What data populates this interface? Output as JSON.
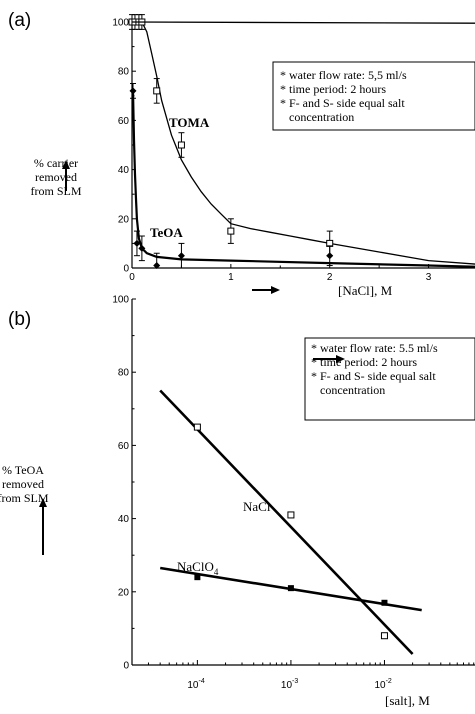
{
  "chart_data": [
    {
      "panel": "(a)",
      "type": "scatter",
      "ylabel": [
        "% carrier",
        "removed",
        "from SLM"
      ],
      "xlabel": "[NaCl], M",
      "xlim": [
        0,
        3.5
      ],
      "ylim": [
        0,
        100
      ],
      "x_ticks": [
        "0",
        "1",
        "2",
        "3"
      ],
      "y_ticks": [
        "0",
        "20",
        "40",
        "60",
        "80",
        "100"
      ],
      "legend": [
        "* water flow rate: 5,5 ml/s",
        "* time period:  2  hours",
        "* F- and S- side equal salt",
        "concentration"
      ],
      "series": [
        {
          "name": "TOMA",
          "marker": "open-square",
          "points": [
            {
              "x": 0.0,
              "y": 100,
              "err": 3
            },
            {
              "x": 0.03,
              "y": 100,
              "err": 3
            },
            {
              "x": 0.07,
              "y": 100,
              "err": 3
            },
            {
              "x": 0.1,
              "y": 100,
              "err": 3
            },
            {
              "x": 0.25,
              "y": 72,
              "err": 5
            },
            {
              "x": 0.5,
              "y": 50,
              "err": 5
            },
            {
              "x": 1.0,
              "y": 15,
              "err": 5
            },
            {
              "x": 2.0,
              "y": 10,
              "err": 5
            }
          ],
          "fit": [
            [
              0.1,
              100
            ],
            [
              0.15,
              96
            ],
            [
              0.2,
              87
            ],
            [
              0.25,
              78
            ],
            [
              0.3,
              68
            ],
            [
              0.4,
              54
            ],
            [
              0.5,
              44
            ],
            [
              0.6,
              37
            ],
            [
              0.7,
              31
            ],
            [
              0.8,
              26
            ],
            [
              0.9,
              22
            ],
            [
              1.0,
              18
            ],
            [
              1.2,
              16
            ],
            [
              1.4,
              14.5
            ],
            [
              1.6,
              13
            ],
            [
              1.8,
              11.5
            ],
            [
              2.0,
              10
            ],
            [
              2.5,
              6.5
            ],
            [
              3.0,
              3
            ],
            [
              3.5,
              1.5
            ]
          ]
        },
        {
          "name": "TeOA",
          "marker": "filled-diamond",
          "points": [
            {
              "x": 0.01,
              "y": 72,
              "err": 3
            },
            {
              "x": 0.05,
              "y": 10,
              "err": 5
            },
            {
              "x": 0.1,
              "y": 8,
              "err": 5
            },
            {
              "x": 0.25,
              "y": 1,
              "err": 5
            },
            {
              "x": 0.5,
              "y": 5,
              "err": 5
            },
            {
              "x": 2.0,
              "y": 5,
              "err": 4
            }
          ],
          "fit": [
            [
              0.01,
              72
            ],
            [
              0.015,
              62
            ],
            [
              0.02,
              52
            ],
            [
              0.03,
              38
            ],
            [
              0.04,
              28
            ],
            [
              0.05,
              20
            ],
            [
              0.07,
              12
            ],
            [
              0.1,
              8
            ],
            [
              0.15,
              6
            ],
            [
              0.25,
              4.5
            ],
            [
              0.5,
              3.5
            ],
            [
              1.0,
              3
            ],
            [
              2.0,
              2
            ],
            [
              3.0,
              1
            ],
            [
              3.5,
              0.5
            ]
          ]
        },
        {
          "name": "",
          "marker": "none",
          "fit": [
            [
              0.0,
              100
            ],
            [
              3.5,
              99.5
            ]
          ]
        }
      ]
    },
    {
      "panel": "(b)",
      "type": "scatter",
      "ylabel": [
        "% TeOA",
        "removed",
        "from SLM"
      ],
      "xlabel": "[salt], M",
      "xscale": "log",
      "xlim": [
        2e-05,
        0.1
      ],
      "ylim": [
        0,
        100
      ],
      "x_ticks": [
        {
          "value": 0.0001,
          "base": "10",
          "exp": "-4"
        },
        {
          "value": 0.001,
          "base": "10",
          "exp": "-3"
        },
        {
          "value": 0.01,
          "base": "10",
          "exp": "-2"
        }
      ],
      "y_ticks": [
        "0",
        "20",
        "40",
        "60",
        "80",
        "100"
      ],
      "legend": [
        "* water flow rate: 5.5 ml/s",
        "* time period: 2 hours",
        "* F- and S- side equal salt",
        "concentration"
      ],
      "series": [
        {
          "name": "NaCl",
          "marker": "open-square",
          "points": [
            {
              "x": 0.0001,
              "y": 65
            },
            {
              "x": 0.001,
              "y": 41
            },
            {
              "x": 0.01,
              "y": 8
            }
          ],
          "fit": [
            [
              4e-05,
              75
            ],
            [
              0.02,
              3
            ]
          ]
        },
        {
          "name": "NaClO",
          "name_sub": "4",
          "marker": "filled-square",
          "points": [
            {
              "x": 0.0001,
              "y": 24
            },
            {
              "x": 0.001,
              "y": 21
            },
            {
              "x": 0.01,
              "y": 17
            }
          ],
          "fit": [
            [
              4e-05,
              26.5
            ],
            [
              0.025,
              15
            ]
          ]
        }
      ]
    }
  ]
}
